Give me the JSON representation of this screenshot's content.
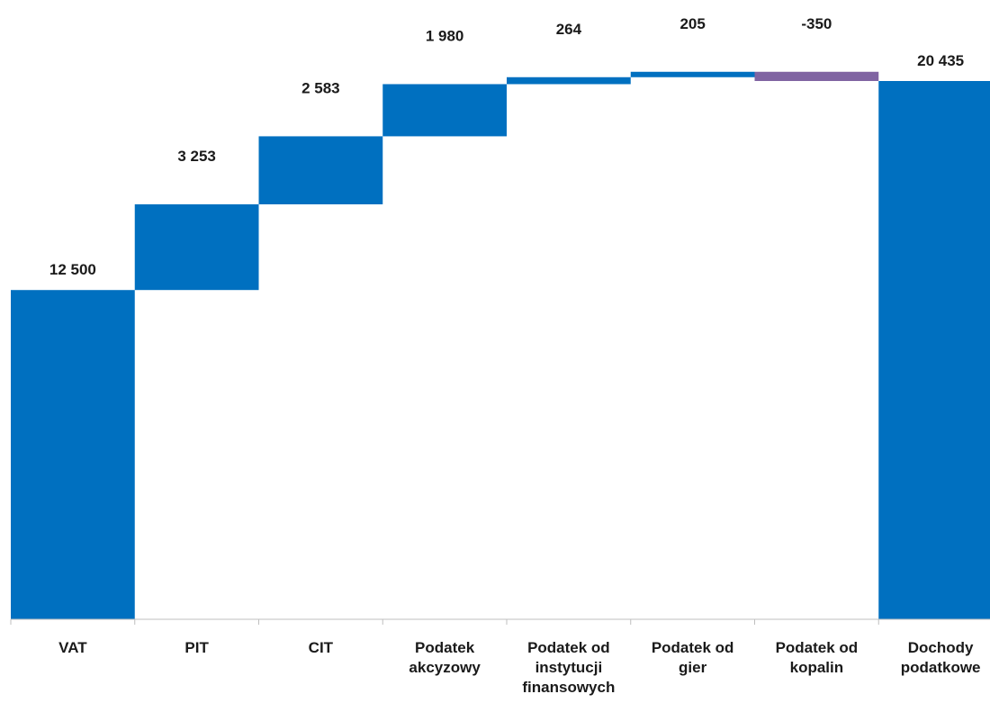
{
  "chart_data": {
    "type": "bar",
    "subtype": "waterfall",
    "title": "",
    "xlabel": "",
    "ylabel": "",
    "ylim": [
      0,
      22000
    ],
    "grid": false,
    "legend": "none",
    "categories": [
      "VAT",
      "PIT",
      "CIT",
      "Podatek akcyzowy",
      "Podatek od instytucji finansowych",
      "Podatek od gier",
      "Podatek od kopalin",
      "Dochody podatkowe"
    ],
    "category_label_lines": [
      [
        "VAT"
      ],
      [
        "PIT"
      ],
      [
        "CIT"
      ],
      [
        "Podatek",
        "akcyzowy"
      ],
      [
        "Podatek od",
        "instytucji",
        "finansowych"
      ],
      [
        "Podatek od",
        "gier"
      ],
      [
        "Podatek od",
        "kopalin"
      ],
      [
        "Dochody",
        "podatkowe"
      ]
    ],
    "values": [
      12500,
      3253,
      2583,
      1980,
      264,
      205,
      -350,
      20435
    ],
    "value_labels": [
      "12 500",
      "3 253",
      "2 583",
      "1 980",
      "264",
      "205",
      "-350",
      "20 435"
    ],
    "bar_kinds": [
      "total",
      "delta",
      "delta",
      "delta",
      "delta",
      "delta",
      "delta",
      "total"
    ],
    "colors": {
      "increase": "#0070C0",
      "decrease": "#8064A2",
      "total": "#0070C0",
      "axis": "#BFBFBF",
      "text": "#1a1a1a"
    }
  }
}
